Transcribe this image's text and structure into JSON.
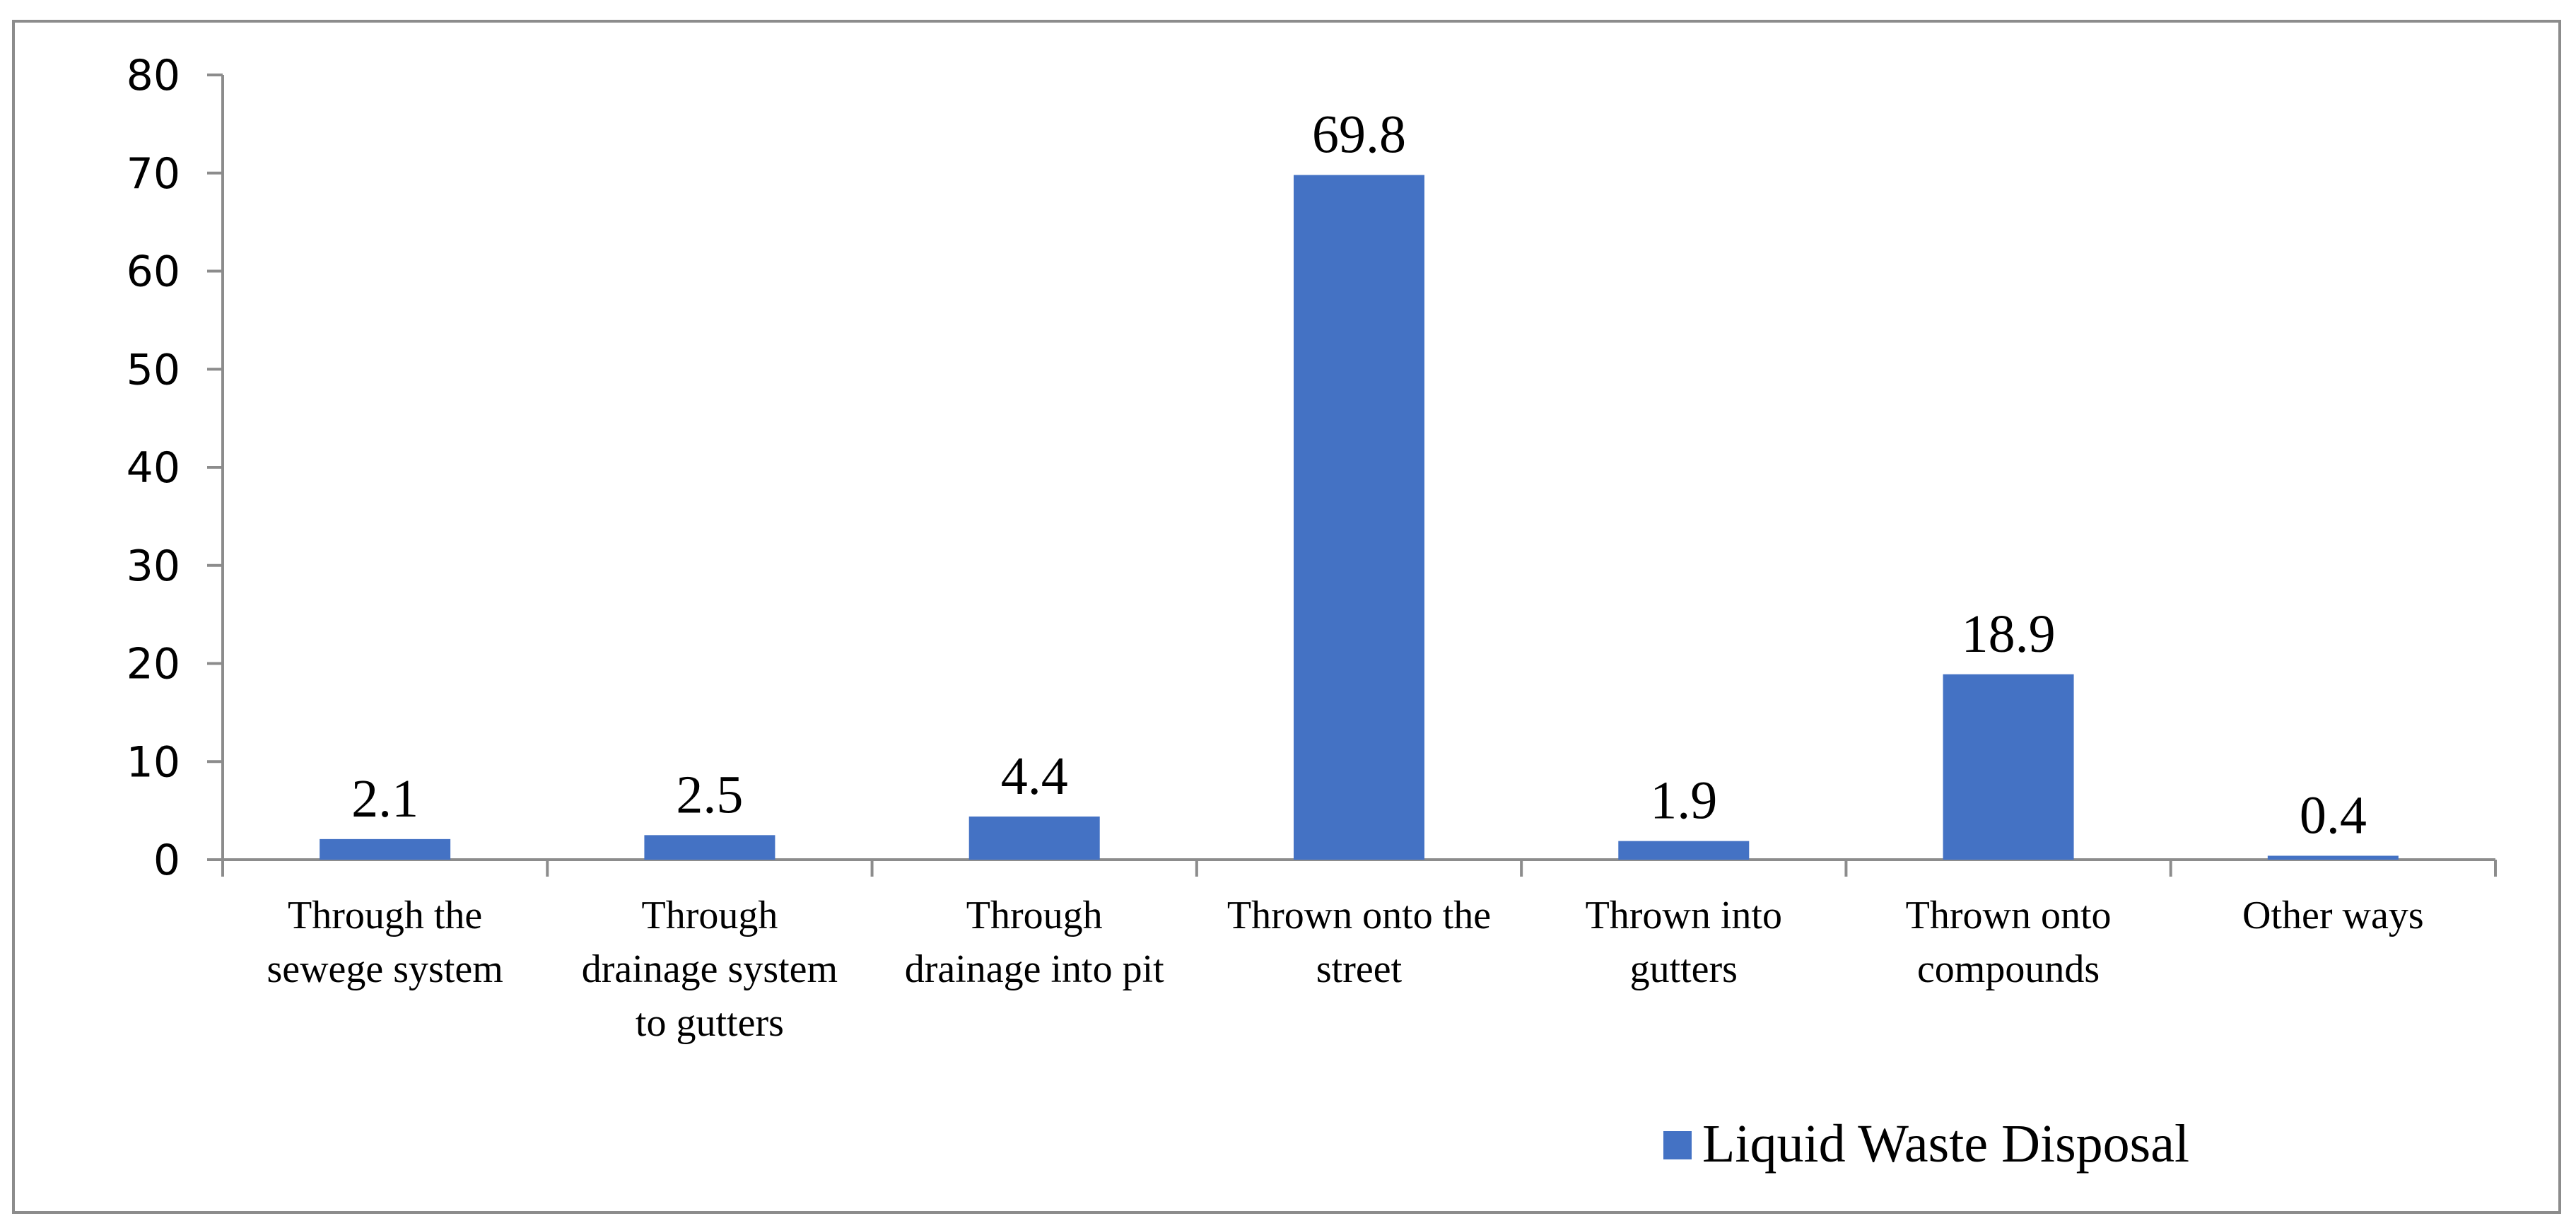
{
  "chart_data": {
    "type": "bar",
    "title": "",
    "xlabel": "",
    "ylabel": "",
    "ylim": [
      0,
      80
    ],
    "yticks": [
      "0",
      "10",
      "20",
      "30",
      "40",
      "50",
      "60",
      "70",
      "80"
    ],
    "grid": false,
    "categories": [
      [
        "Through the",
        "sewege system"
      ],
      [
        "Through",
        "drainage system",
        "to gutters"
      ],
      [
        "Through",
        "drainage into pit"
      ],
      [
        "Thrown onto the",
        "street"
      ],
      [
        "Thrown into",
        "gutters"
      ],
      [
        "Thrown onto",
        "compounds"
      ],
      [
        "Other ways"
      ]
    ],
    "series": [
      {
        "name": "Liquid Waste Disposal",
        "color": "#4472C4",
        "values": [
          2.1,
          2.5,
          4.4,
          69.8,
          1.9,
          18.9,
          0.4
        ],
        "labels": [
          "2.1",
          "2.5",
          "4.4",
          "69.8",
          "1.9",
          "18.9",
          "0.4"
        ]
      }
    ],
    "legend_position": "bottom-right"
  }
}
